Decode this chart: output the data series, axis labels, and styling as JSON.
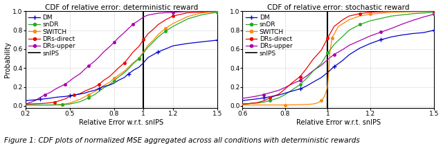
{
  "left_title": "CDF of relative error: deterministic reward",
  "right_title": "CDF of relative error: stochastic reward",
  "xlabel": "Relative Error w.r.t. snIPS",
  "ylabel": "Probability",
  "left_xlim": [
    0.2,
    1.5
  ],
  "right_xlim": [
    0.6,
    1.5
  ],
  "ylim": [
    0.0,
    1.0
  ],
  "left_xticks": [
    0.2,
    0.5,
    0.8,
    1.0,
    1.2,
    1.5
  ],
  "right_xticks": [
    0.6,
    0.8,
    1.0,
    1.2,
    1.5
  ],
  "yticks": [
    0.0,
    0.2,
    0.4,
    0.6,
    0.8,
    1.0
  ],
  "vline_x": 1.0,
  "legend_labels": [
    "DM",
    "snDR",
    "SWITCH",
    "DRs-direct",
    "DRs-upper",
    "snIPS"
  ],
  "colors": {
    "DM": "#0000cc",
    "snDR": "#22aa22",
    "SWITCH": "#ff8800",
    "DRs-direct": "#ee0000",
    "DRs-upper": "#aa00aa",
    "snIPS": "#000000"
  },
  "left_curves": {
    "DM": {
      "x": [
        0.2,
        0.23,
        0.27,
        0.3,
        0.33,
        0.37,
        0.4,
        0.43,
        0.47,
        0.5,
        0.53,
        0.57,
        0.6,
        0.63,
        0.67,
        0.7,
        0.73,
        0.77,
        0.8,
        0.83,
        0.87,
        0.9,
        0.93,
        0.97,
        1.0,
        1.03,
        1.07,
        1.1,
        1.13,
        1.17,
        1.2,
        1.3,
        1.4,
        1.5
      ],
      "y": [
        0.055,
        0.06,
        0.065,
        0.07,
        0.075,
        0.082,
        0.09,
        0.095,
        0.1,
        0.108,
        0.115,
        0.125,
        0.135,
        0.15,
        0.165,
        0.185,
        0.205,
        0.22,
        0.24,
        0.27,
        0.3,
        0.34,
        0.375,
        0.41,
        0.455,
        0.51,
        0.545,
        0.57,
        0.59,
        0.615,
        0.635,
        0.66,
        0.678,
        0.695
      ],
      "marker": "+",
      "marker_indices": [
        3,
        9,
        15,
        21,
        27,
        33
      ]
    },
    "snDR": {
      "x": [
        0.2,
        0.25,
        0.3,
        0.35,
        0.4,
        0.45,
        0.5,
        0.53,
        0.57,
        0.6,
        0.63,
        0.67,
        0.7,
        0.73,
        0.77,
        0.8,
        0.83,
        0.87,
        0.9,
        0.93,
        0.97,
        1.0,
        1.03,
        1.07,
        1.1,
        1.15,
        1.2,
        1.3,
        1.4,
        1.5
      ],
      "y": [
        0.01,
        0.01,
        0.01,
        0.01,
        0.01,
        0.012,
        0.02,
        0.03,
        0.045,
        0.065,
        0.09,
        0.12,
        0.155,
        0.19,
        0.225,
        0.265,
        0.305,
        0.35,
        0.395,
        0.445,
        0.5,
        0.56,
        0.62,
        0.68,
        0.73,
        0.79,
        0.84,
        0.92,
        0.965,
        0.99
      ],
      "marker": "o",
      "marker_indices": [
        5,
        10,
        15,
        20,
        25,
        29
      ]
    },
    "SWITCH": {
      "x": [
        0.2,
        0.25,
        0.3,
        0.35,
        0.4,
        0.45,
        0.5,
        0.53,
        0.57,
        0.6,
        0.63,
        0.67,
        0.7,
        0.73,
        0.77,
        0.8,
        0.83,
        0.87,
        0.9,
        0.93,
        0.97,
        1.0,
        1.03,
        1.07,
        1.1,
        1.15,
        1.2,
        1.3,
        1.4,
        1.5
      ],
      "y": [
        0.01,
        0.01,
        0.01,
        0.01,
        0.012,
        0.018,
        0.03,
        0.048,
        0.07,
        0.095,
        0.12,
        0.15,
        0.185,
        0.215,
        0.25,
        0.29,
        0.325,
        0.365,
        0.41,
        0.455,
        0.505,
        0.57,
        0.64,
        0.7,
        0.755,
        0.82,
        0.87,
        0.945,
        0.985,
        1.0
      ],
      "marker": "o",
      "marker_indices": [
        5,
        10,
        15,
        20,
        25,
        29
      ]
    },
    "DRs-direct": {
      "x": [
        0.2,
        0.25,
        0.3,
        0.35,
        0.4,
        0.43,
        0.47,
        0.5,
        0.53,
        0.57,
        0.6,
        0.63,
        0.67,
        0.7,
        0.73,
        0.77,
        0.8,
        0.83,
        0.87,
        0.9,
        0.93,
        0.97,
        1.0,
        1.03,
        1.07,
        1.1,
        1.15,
        1.2,
        1.3,
        1.5
      ],
      "y": [
        0.02,
        0.022,
        0.025,
        0.03,
        0.04,
        0.055,
        0.075,
        0.1,
        0.115,
        0.13,
        0.155,
        0.175,
        0.2,
        0.23,
        0.27,
        0.31,
        0.355,
        0.4,
        0.455,
        0.51,
        0.57,
        0.63,
        0.7,
        0.76,
        0.815,
        0.86,
        0.91,
        0.95,
        0.985,
        1.0
      ],
      "marker": "o",
      "marker_indices": [
        4,
        8,
        13,
        18,
        22,
        27
      ]
    },
    "DRs-upper": {
      "x": [
        0.2,
        0.23,
        0.27,
        0.3,
        0.33,
        0.37,
        0.4,
        0.43,
        0.47,
        0.5,
        0.53,
        0.57,
        0.6,
        0.63,
        0.67,
        0.7,
        0.73,
        0.77,
        0.8,
        0.83,
        0.87,
        0.9,
        0.93,
        0.97,
        1.0,
        1.03,
        1.1,
        1.2,
        1.3,
        1.5
      ],
      "y": [
        0.02,
        0.035,
        0.06,
        0.09,
        0.115,
        0.145,
        0.175,
        0.2,
        0.23,
        0.265,
        0.3,
        0.34,
        0.385,
        0.425,
        0.475,
        0.52,
        0.57,
        0.625,
        0.67,
        0.72,
        0.775,
        0.82,
        0.865,
        0.905,
        0.94,
        0.96,
        0.98,
        0.99,
        0.998,
        1.0
      ],
      "marker": "o",
      "marker_indices": [
        4,
        8,
        13,
        18,
        22,
        27
      ]
    }
  },
  "right_curves": {
    "DM": {
      "x": [
        0.6,
        0.63,
        0.67,
        0.7,
        0.73,
        0.77,
        0.8,
        0.83,
        0.87,
        0.9,
        0.93,
        0.97,
        1.0,
        1.03,
        1.07,
        1.1,
        1.15,
        1.2,
        1.25,
        1.3,
        1.35,
        1.4,
        1.45,
        1.5
      ],
      "y": [
        0.055,
        0.065,
        0.075,
        0.085,
        0.098,
        0.115,
        0.135,
        0.155,
        0.18,
        0.21,
        0.25,
        0.3,
        0.355,
        0.415,
        0.48,
        0.54,
        0.61,
        0.66,
        0.7,
        0.73,
        0.75,
        0.765,
        0.775,
        0.8
      ],
      "marker": "+",
      "marker_indices": [
        3,
        8,
        13,
        18,
        23
      ]
    },
    "snDR": {
      "x": [
        0.6,
        0.63,
        0.67,
        0.7,
        0.73,
        0.77,
        0.8,
        0.83,
        0.87,
        0.9,
        0.93,
        0.97,
        1.0,
        1.03,
        1.07,
        1.1,
        1.15,
        1.2,
        1.3,
        1.4,
        1.5
      ],
      "y": [
        0.02,
        0.025,
        0.03,
        0.04,
        0.058,
        0.085,
        0.12,
        0.165,
        0.225,
        0.29,
        0.365,
        0.45,
        0.56,
        0.65,
        0.735,
        0.8,
        0.86,
        0.9,
        0.95,
        0.975,
        0.99
      ],
      "marker": "o",
      "marker_indices": [
        4,
        8,
        12,
        16,
        20
      ]
    },
    "SWITCH": {
      "x": [
        0.6,
        0.65,
        0.7,
        0.75,
        0.8,
        0.85,
        0.9,
        0.93,
        0.95,
        0.97,
        0.98,
        0.99,
        1.0,
        1.01,
        1.02,
        1.05,
        1.1,
        1.15,
        1.2,
        1.3,
        1.5
      ],
      "y": [
        0.01,
        0.01,
        0.01,
        0.01,
        0.01,
        0.012,
        0.015,
        0.02,
        0.03,
        0.055,
        0.085,
        0.13,
        0.215,
        0.56,
        0.72,
        0.84,
        0.91,
        0.95,
        0.97,
        0.99,
        1.0
      ],
      "marker": "o",
      "marker_indices": [
        4,
        9,
        14,
        18,
        20
      ]
    },
    "DRs-direct": {
      "x": [
        0.6,
        0.63,
        0.67,
        0.7,
        0.73,
        0.77,
        0.8,
        0.83,
        0.87,
        0.9,
        0.93,
        0.97,
        1.0,
        1.03,
        1.07,
        1.1,
        1.15,
        1.2,
        1.3,
        1.5
      ],
      "y": [
        0.02,
        0.025,
        0.035,
        0.055,
        0.085,
        0.125,
        0.18,
        0.24,
        0.31,
        0.395,
        0.49,
        0.59,
        0.72,
        0.84,
        0.91,
        0.95,
        0.975,
        0.99,
        1.0,
        1.0
      ],
      "marker": "o",
      "marker_indices": [
        4,
        8,
        12,
        16,
        19
      ]
    },
    "DRs-upper": {
      "x": [
        0.6,
        0.63,
        0.67,
        0.7,
        0.73,
        0.77,
        0.8,
        0.83,
        0.87,
        0.9,
        0.93,
        0.97,
        1.0,
        1.03,
        1.07,
        1.1,
        1.15,
        1.2,
        1.25,
        1.3,
        1.35,
        1.4,
        1.45,
        1.5
      ],
      "y": [
        0.08,
        0.09,
        0.105,
        0.12,
        0.14,
        0.165,
        0.195,
        0.23,
        0.27,
        0.315,
        0.37,
        0.43,
        0.49,
        0.545,
        0.595,
        0.64,
        0.69,
        0.74,
        0.78,
        0.82,
        0.865,
        0.905,
        0.94,
        0.97
      ],
      "marker": "o",
      "marker_indices": [
        3,
        8,
        13,
        18,
        23
      ]
    }
  },
  "figure_caption": "Figure 1: CDF plots of normalized MSE aggregated across all conditions with deterministic rewards",
  "title_fontsize": 7.5,
  "label_fontsize": 7,
  "tick_fontsize": 6.5,
  "legend_fontsize": 6.5,
  "caption_fontsize": 7.5
}
